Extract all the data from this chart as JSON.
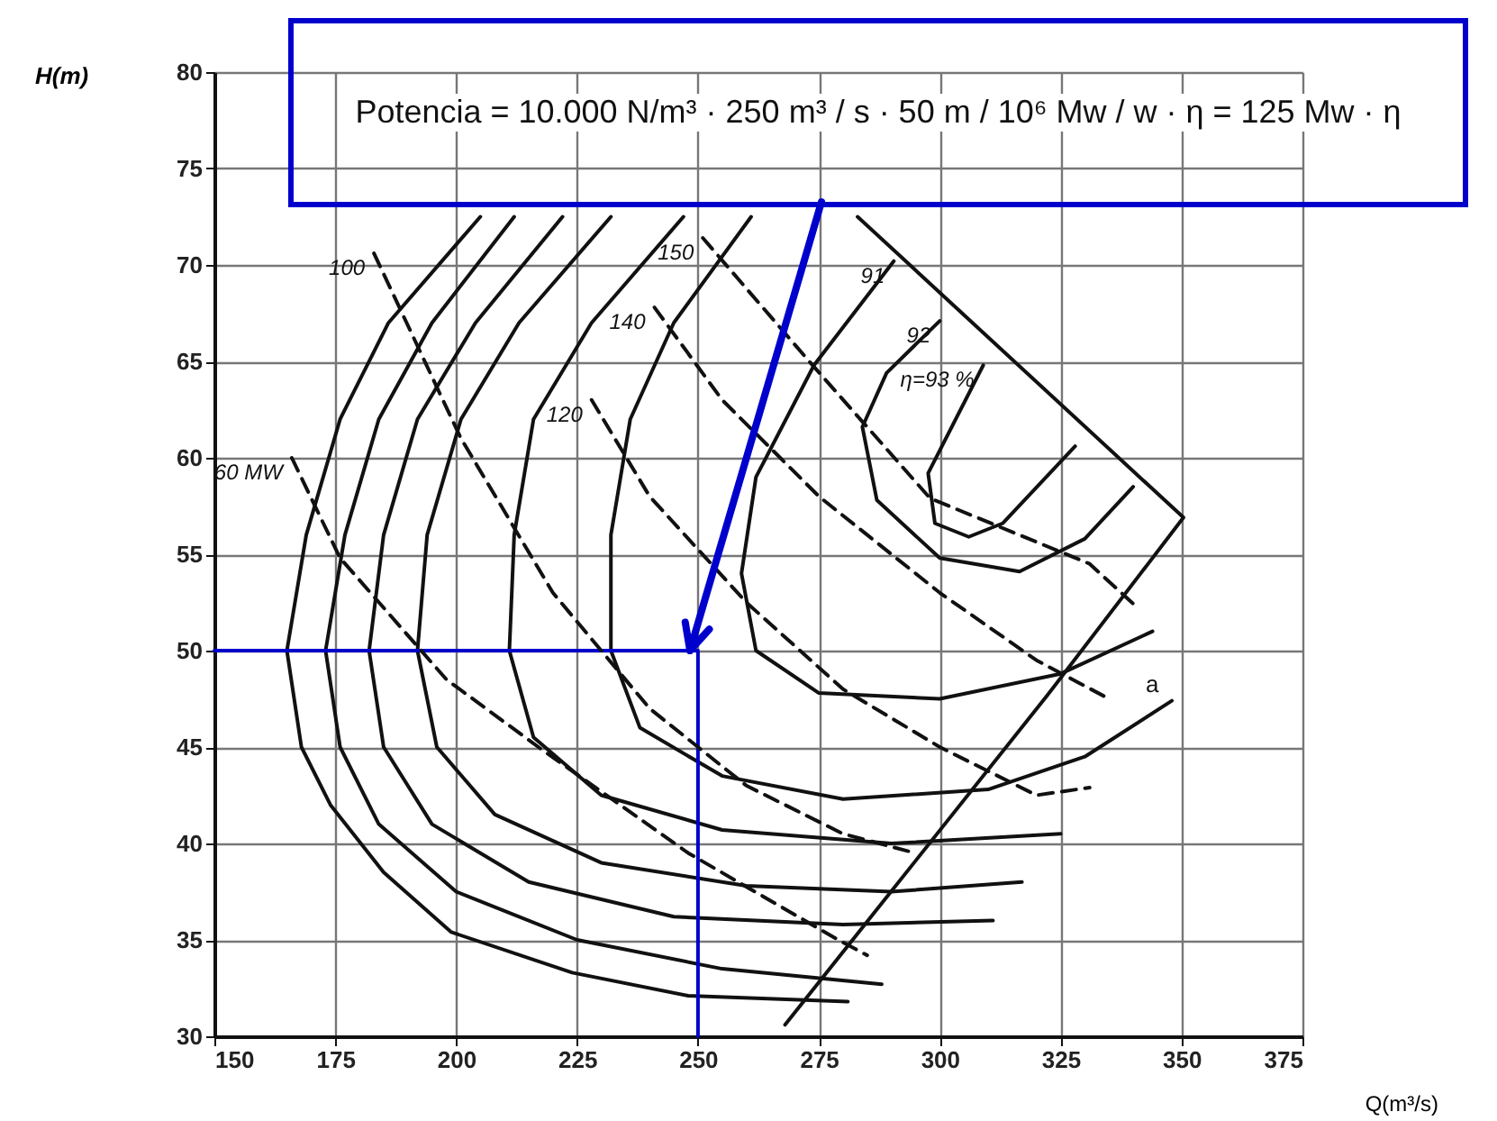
{
  "chart_data": {
    "type": "line",
    "xlabel": "Q(m³/s)",
    "ylabel": "H(m)",
    "xlim": [
      150,
      375
    ],
    "ylim": [
      30,
      80
    ],
    "xticks": [
      150,
      175,
      200,
      225,
      250,
      275,
      300,
      325,
      350,
      375
    ],
    "yticks": [
      30,
      35,
      40,
      45,
      50,
      55,
      60,
      65,
      70,
      75,
      80
    ],
    "grid": true,
    "legend": false,
    "marker": "none",
    "annotations": [
      "Potencia = 10.000 N/m³ · 250 m³ / s · 50 m / 10⁶ Mw / w · η = 125 Mw · η",
      "a"
    ],
    "series": [
      {
        "color": "#111111",
        "line_style": "solid",
        "x": [
          205,
          186,
          176,
          169,
          165,
          168,
          174,
          185,
          199,
          224,
          248,
          281
        ],
        "values": [
          72.5,
          67,
          62,
          56,
          50,
          45,
          42,
          38.5,
          35.4,
          33.3,
          32.1,
          31.8
        ]
      },
      {
        "color": "#111111",
        "line_style": "solid",
        "x": [
          212,
          195,
          184,
          177,
          173,
          176,
          184,
          200,
          225,
          255,
          288
        ],
        "values": [
          72.5,
          67,
          62,
          56,
          50,
          45,
          41,
          37.5,
          35,
          33.5,
          32.7
        ]
      },
      {
        "color": "#111111",
        "line_style": "solid",
        "x": [
          222,
          204,
          192,
          185,
          182,
          185,
          195,
          215,
          245,
          280,
          311
        ],
        "values": [
          72.5,
          67,
          62,
          56,
          50,
          45,
          41,
          38,
          36.2,
          35.8,
          36
        ]
      },
      {
        "color": "#111111",
        "line_style": "solid",
        "x": [
          232,
          213,
          201,
          194,
          192,
          196,
          208,
          230,
          260,
          290,
          317
        ],
        "values": [
          72.5,
          67,
          62,
          56,
          50,
          45,
          41.5,
          39,
          37.8,
          37.5,
          38
        ]
      },
      {
        "color": "#111111",
        "line_style": "solid",
        "x": [
          247,
          228,
          216,
          212,
          211,
          216,
          230,
          255,
          290,
          325
        ],
        "values": [
          72.5,
          67,
          62,
          56,
          50,
          45.5,
          42.5,
          40.7,
          40,
          40.5
        ]
      },
      {
        "color": "#111111",
        "line_style": "solid",
        "x": [
          261,
          245,
          236,
          232,
          232,
          238,
          255,
          280,
          310,
          330,
          348
        ],
        "values": [
          72.5,
          67,
          62,
          56,
          50,
          46,
          43.5,
          42.3,
          42.8,
          44.5,
          47.4
        ]
      },
      {
        "name": "91",
        "color": "#111111",
        "line_style": "solid",
        "x": [
          290.5,
          274,
          262,
          259,
          262,
          275,
          300,
          325,
          344
        ],
        "values": [
          70.2,
          64.8,
          59,
          54,
          50,
          47.8,
          47.5,
          48.8,
          51
        ]
      },
      {
        "name": "92",
        "color": "#111111",
        "line_style": "solid",
        "x": [
          300,
          289,
          284,
          287,
          300,
          316.5,
          330,
          340
        ],
        "values": [
          67.1,
          64.4,
          61.6,
          57.8,
          54.8,
          54.1,
          55.8,
          58.5
        ]
      },
      {
        "name": "η=93 %",
        "color": "#111111",
        "line_style": "solid",
        "x": [
          309,
          297.6,
          299,
          306,
          313,
          328
        ],
        "values": [
          64.8,
          59.2,
          56.6,
          55.9,
          56.6,
          60.6
        ]
      },
      {
        "color": "#111111",
        "line_style": "solid",
        "x": [
          268,
          322,
          350.4,
          283
        ],
        "values": [
          30.6,
          47.6,
          56.9,
          72.5
        ]
      },
      {
        "name": "60 MW",
        "color": "#111111",
        "line_style": "dashed",
        "x": [
          166,
          176,
          198,
          217,
          248,
          279,
          285
        ],
        "values": [
          60,
          54.8,
          48.5,
          45,
          39.5,
          35,
          34.2
        ]
      },
      {
        "name": "100",
        "color": "#111111",
        "line_style": "dashed",
        "x": [
          183,
          201,
          220,
          240,
          260,
          280,
          295
        ],
        "values": [
          70.6,
          61,
          53,
          47,
          43,
          40.5,
          39.5
        ]
      },
      {
        "name": "120",
        "color": "#111111",
        "line_style": "dashed",
        "x": [
          228,
          240,
          260,
          280,
          300,
          320,
          331
        ],
        "values": [
          63,
          58,
          52.5,
          48,
          45,
          42.5,
          42.9
        ]
      },
      {
        "name": "140",
        "color": "#111111",
        "line_style": "dashed",
        "x": [
          241,
          255,
          275,
          300,
          320,
          335
        ],
        "values": [
          67.8,
          63,
          58,
          53,
          49.5,
          47.5
        ]
      },
      {
        "name": "150",
        "color": "#111111",
        "line_style": "dashed",
        "x": [
          251,
          273,
          298,
          331,
          341
        ],
        "values": [
          71.4,
          65,
          57.9,
          54.5,
          52.2
        ]
      },
      {
        "color": "#0000cc",
        "line_style": "solid",
        "x": [
          150,
          250,
          250
        ],
        "values": [
          50,
          50,
          30
        ]
      }
    ]
  }
}
